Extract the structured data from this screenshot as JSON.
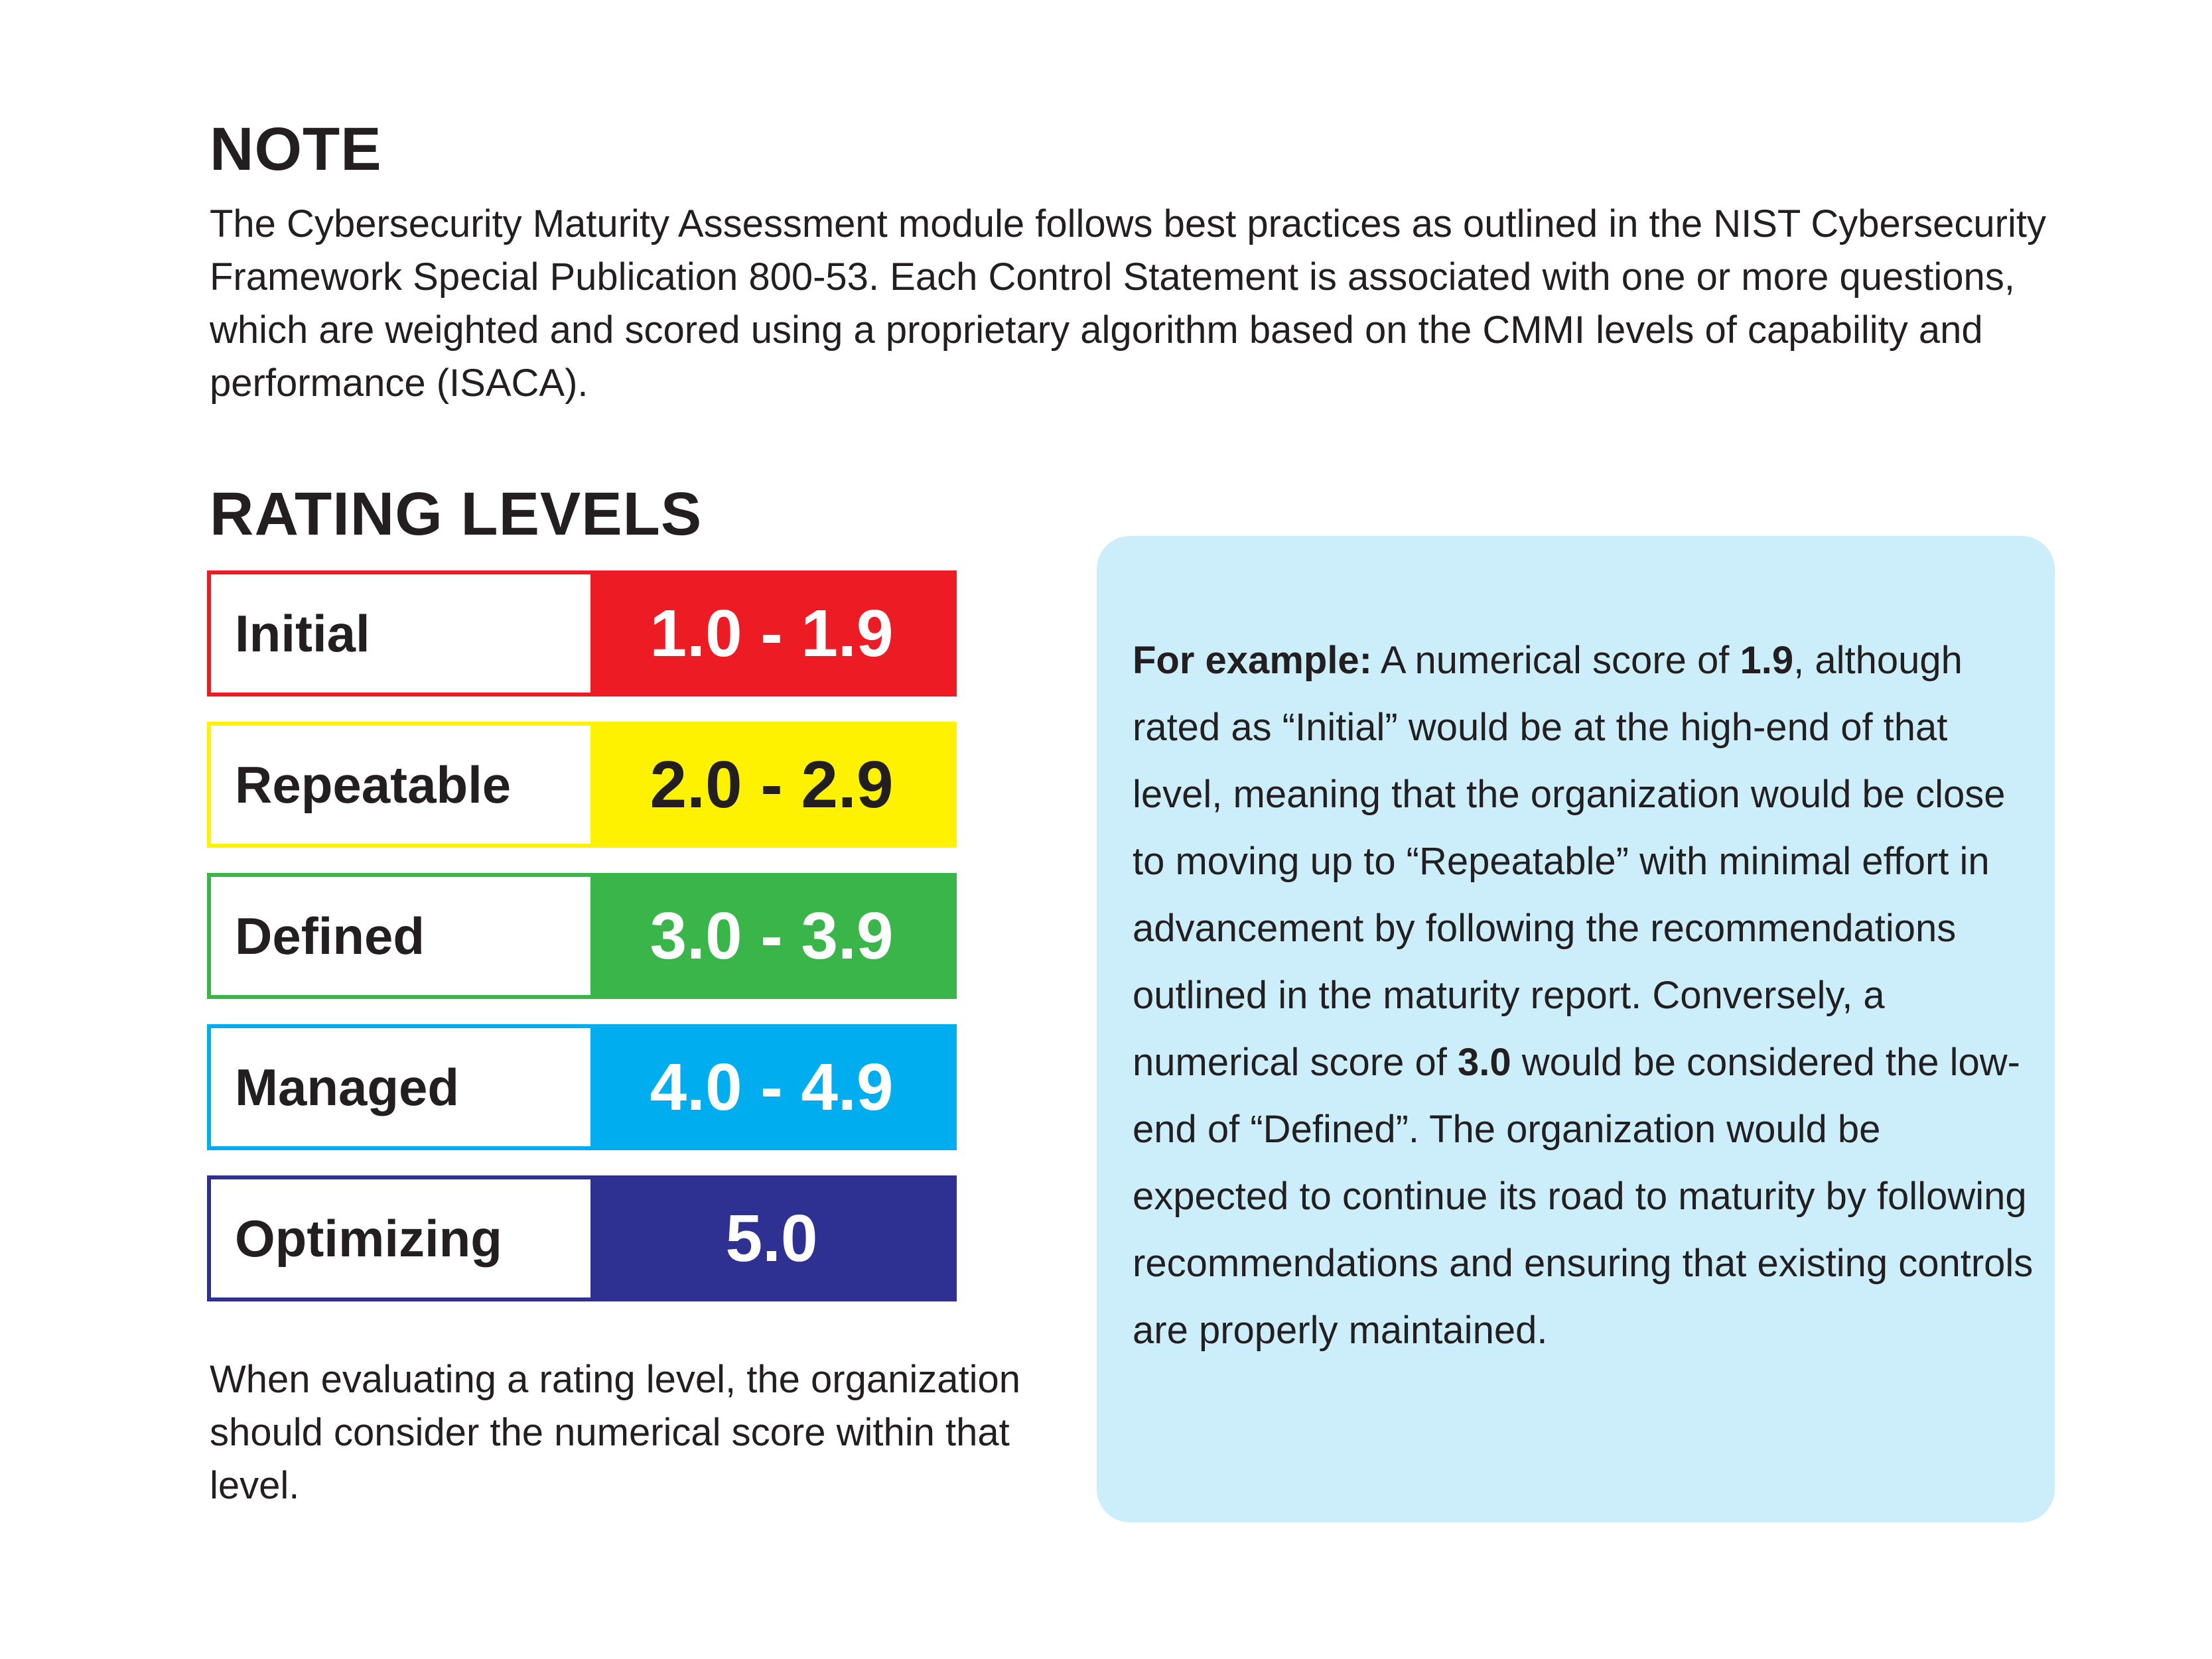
{
  "note": {
    "heading": "NOTE",
    "body": "The Cybersecurity Maturity Assessment module follows best practices as outlined in the NIST Cybersecurity Framework Special Publication 800-53. Each Control Statement is associated with one or more questions, which are weighted and scored using a proprietary algorithm based on the CMMI levels of capability and performance (ISACA)."
  },
  "rating_levels": {
    "heading": "RATING LEVELS",
    "levels": [
      {
        "name": "Initial",
        "range": "1.0 - 1.9",
        "color": "#ed1c24",
        "text_color": "#ffffff"
      },
      {
        "name": "Repeatable",
        "range": "2.0 - 2.9",
        "color": "#fff200",
        "text_color": "#231f20"
      },
      {
        "name": "Defined",
        "range": "3.0 - 3.9",
        "color": "#39b54a",
        "text_color": "#ffffff"
      },
      {
        "name": "Managed",
        "range": "4.0 - 4.9",
        "color": "#00aeef",
        "text_color": "#ffffff"
      },
      {
        "name": "Optimizing",
        "range": "5.0",
        "color": "#2e3192",
        "text_color": "#ffffff"
      }
    ],
    "evaluation_note": "When evaluating a rating level, the organization should consider the numerical score within that level."
  },
  "example": {
    "label": "For example:",
    "part1": " A numerical score of ",
    "score_low": "1.9",
    "part2": ", although rated as “Initial” would be at the high-end of that level, meaning that the organization would be close to moving up to “Repeatable” with minimal effort in advancement by following the recommendations outlined in the maturity report. Conversely, a numerical score of ",
    "score_high": "3.0",
    "part3": " would be considered the low-end of “Defined”. The organization would be expected to continue its road to maturity by following recommendations and ensuring that existing controls are properly maintained.",
    "background_color": "#cceefa"
  }
}
